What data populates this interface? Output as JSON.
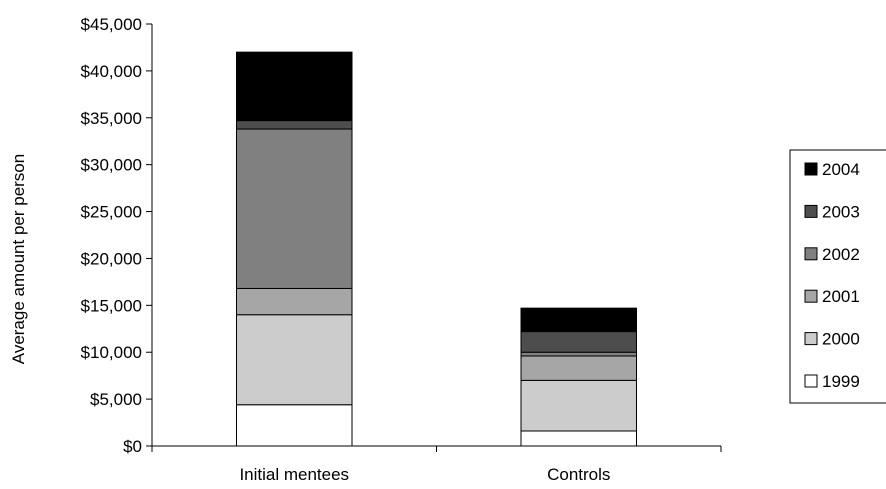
{
  "chart_data": {
    "type": "bar",
    "stacked": true,
    "title": "",
    "xlabel": "",
    "ylabel": "Average amount per person",
    "ylim": [
      0,
      45000
    ],
    "ytick_step": 5000,
    "ytick_labels": [
      "$0",
      "$5,000",
      "$10,000",
      "$15,000",
      "$20,000",
      "$25,000",
      "$30,000",
      "$35,000",
      "$40,000",
      "$45,000"
    ],
    "categories": [
      "Initial mentees",
      "Controls"
    ],
    "series": [
      {
        "name": "1999",
        "color": "#ffffff",
        "values": [
          4400,
          1600
        ]
      },
      {
        "name": "2000",
        "color": "#cccccc",
        "values": [
          9600,
          5400
        ]
      },
      {
        "name": "2001",
        "color": "#a6a6a6",
        "values": [
          2800,
          2600
        ]
      },
      {
        "name": "2002",
        "color": "#808080",
        "values": [
          17000,
          400
        ]
      },
      {
        "name": "2003",
        "color": "#4d4d4d",
        "values": [
          900,
          2200
        ]
      },
      {
        "name": "2004",
        "color": "#000000",
        "values": [
          7300,
          2500
        ]
      }
    ],
    "grid": false,
    "legend_position": "right"
  }
}
